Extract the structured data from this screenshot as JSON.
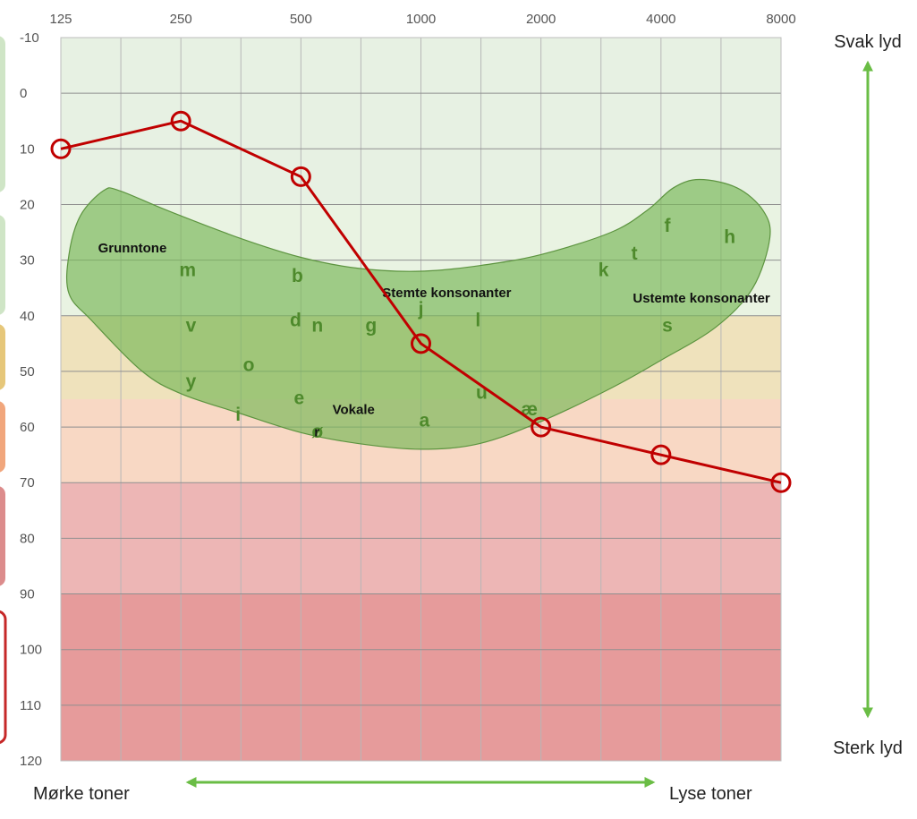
{
  "chart_data": {
    "type": "line",
    "title": "",
    "xlabel": "",
    "ylabel": "",
    "x_ticks": [
      "125",
      "250",
      "500",
      "1000",
      "2000",
      "4000",
      "8000"
    ],
    "x_scale": "log2",
    "y_ticks": [
      "-10",
      "0",
      "10",
      "20",
      "30",
      "40",
      "50",
      "60",
      "70",
      "80",
      "90",
      "100",
      "110",
      "120"
    ],
    "ylim": [
      -10,
      120
    ],
    "y_inverted": true,
    "grid": true,
    "series": [
      {
        "color": "#c00000",
        "x": [
          125,
          250,
          500,
          1000,
          2000,
          4000,
          8000
        ],
        "y": [
          10,
          5,
          15,
          45,
          60,
          65,
          70
        ]
      }
    ],
    "bands": [
      {
        "from": -10,
        "to": 20,
        "color": "#e7f1e3"
      },
      {
        "from": 20,
        "to": 40,
        "color": "#e9f3e2"
      },
      {
        "from": 40,
        "to": 55,
        "color": "#efe2bc"
      },
      {
        "from": 55,
        "to": 70,
        "color": "#f8d8c4"
      },
      {
        "from": 70,
        "to": 90,
        "color": "#edb6b5"
      },
      {
        "from": 90,
        "to": 120,
        "color": "#e69b9b"
      }
    ],
    "speech_banana_color": "#7ab85a",
    "region_labels": [
      {
        "text": "Grunntone",
        "x": 155,
        "y": 28
      },
      {
        "text": "Stemte konsonanter",
        "x": 800,
        "y": 36
      },
      {
        "text": "Ustemte konsonanter",
        "x": 3400,
        "y": 37
      },
      {
        "text": "Vokale",
        "x": 600,
        "y": 57
      },
      {
        "text": "r",
        "x": 540,
        "y": 61
      }
    ],
    "speech_sounds": [
      {
        "text": "m",
        "x": 260,
        "y": 32
      },
      {
        "text": "b",
        "x": 490,
        "y": 33
      },
      {
        "text": "v",
        "x": 265,
        "y": 42
      },
      {
        "text": "d",
        "x": 485,
        "y": 41
      },
      {
        "text": "n",
        "x": 550,
        "y": 42
      },
      {
        "text": "g",
        "x": 750,
        "y": 42
      },
      {
        "text": "j",
        "x": 1000,
        "y": 39
      },
      {
        "text": "l",
        "x": 1390,
        "y": 41
      },
      {
        "text": "o",
        "x": 370,
        "y": 49
      },
      {
        "text": "y",
        "x": 265,
        "y": 52
      },
      {
        "text": "e",
        "x": 495,
        "y": 55
      },
      {
        "text": "i",
        "x": 348,
        "y": 58
      },
      {
        "text": "ø",
        "x": 550,
        "y": 61
      },
      {
        "text": "a",
        "x": 1020,
        "y": 59
      },
      {
        "text": "u",
        "x": 1420,
        "y": 54
      },
      {
        "text": "æ",
        "x": 1870,
        "y": 57
      },
      {
        "text": "k",
        "x": 2870,
        "y": 32
      },
      {
        "text": "t",
        "x": 3430,
        "y": 29
      },
      {
        "text": "f",
        "x": 4150,
        "y": 24
      },
      {
        "text": "h",
        "x": 5950,
        "y": 26
      },
      {
        "text": "s",
        "x": 4150,
        "y": 42
      }
    ]
  },
  "labels": {
    "right_top": "Svak lyd",
    "right_bottom": "Sterk lyd",
    "bottom_left": "Mørke toner",
    "bottom_right": "Lyse toner"
  },
  "side_legend_colors": [
    "#cfe5c6",
    "#cfe5c6",
    "#e6c77a",
    "#f1a67c",
    "#dc8c8c",
    "#c62828"
  ],
  "arrow_color": "#6abd45"
}
